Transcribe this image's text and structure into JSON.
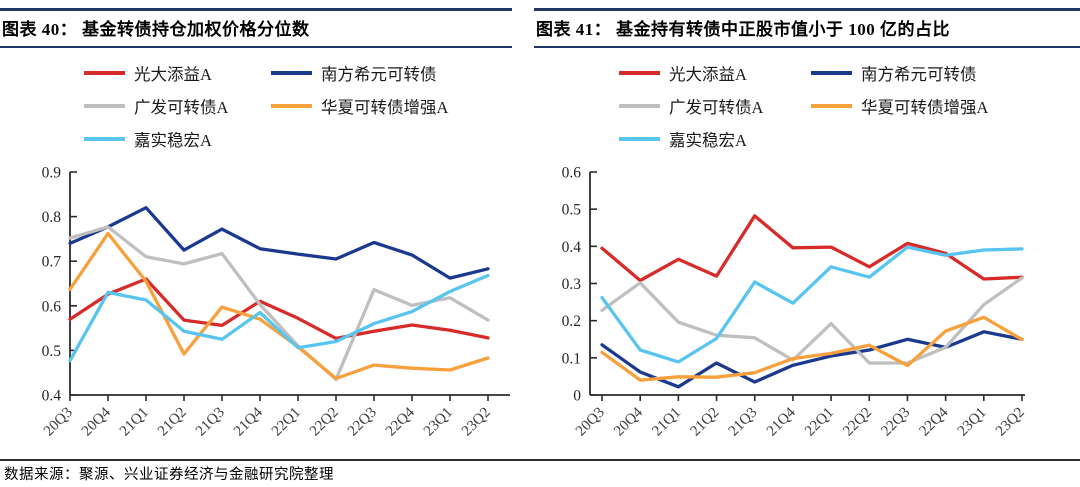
{
  "footer": {
    "source": "数据来源：聚源、兴业证券经济与金融研究院整理"
  },
  "style": {
    "background": "#ffffff",
    "header_line_color": "#1f3864",
    "axis_color": "#2b2b2b",
    "tick_label_color": "#262626",
    "x_label_color": "#3d3d3d",
    "series_colors": {
      "red": "#d62b28",
      "navy": "#1b3a8f",
      "gray": "#bfbfbf",
      "orange": "#f7a03c",
      "cyan": "#58c4f0"
    }
  },
  "chart_data": [
    {
      "type": "line",
      "title": "图表 40： 基金转债持仓加权价格分位数",
      "categories": [
        "20Q3",
        "20Q4",
        "21Q1",
        "21Q2",
        "21Q3",
        "21Q4",
        "22Q1",
        "22Q2",
        "22Q3",
        "22Q4",
        "23Q1",
        "23Q2"
      ],
      "ylim": [
        0.4,
        0.9
      ],
      "ytick_labels": [
        "0.4",
        "0.5",
        "0.6",
        "0.7",
        "0.8",
        "0.9"
      ],
      "grid": false,
      "legend_position": "top-left",
      "series": [
        {
          "name": "光大添益A",
          "color": "#d62b28",
          "values": [
            0.57,
            0.626,
            0.66,
            0.568,
            0.556,
            0.61,
            0.572,
            0.527,
            0.543,
            0.557,
            0.545,
            0.528
          ]
        },
        {
          "name": "南方希元可转债",
          "color": "#1b3a8f",
          "values": [
            0.74,
            0.777,
            0.82,
            0.725,
            0.772,
            0.728,
            0.716,
            0.705,
            0.742,
            0.714,
            0.662,
            0.683
          ]
        },
        {
          "name": "广发可转债A",
          "color": "#bfbfbf",
          "values": [
            0.752,
            0.777,
            0.71,
            0.694,
            0.717,
            0.603,
            0.51,
            0.435,
            0.636,
            0.601,
            0.618,
            0.568
          ]
        },
        {
          "name": "华夏可转债增强A",
          "color": "#f7a03c",
          "values": [
            0.637,
            0.762,
            0.655,
            0.492,
            0.597,
            0.57,
            0.508,
            0.437,
            0.467,
            0.46,
            0.456,
            0.483
          ]
        },
        {
          "name": "嘉实稳宏A",
          "color": "#58c4f0",
          "values": [
            0.477,
            0.63,
            0.613,
            0.543,
            0.525,
            0.585,
            0.506,
            0.52,
            0.56,
            0.587,
            0.632,
            0.668
          ]
        }
      ]
    },
    {
      "type": "line",
      "title": "图表 41： 基金持有转债中正股市值小于 100 亿的占比",
      "categories": [
        "20Q3",
        "20Q4",
        "21Q1",
        "21Q2",
        "21Q3",
        "21Q4",
        "22Q1",
        "22Q2",
        "22Q3",
        "22Q4",
        "23Q1",
        "23Q2"
      ],
      "ylim": [
        0,
        0.6
      ],
      "ytick_labels": [
        "0",
        "0.1",
        "0.2",
        "0.3",
        "0.4",
        "0.5",
        "0.6"
      ],
      "grid": false,
      "legend_position": "top-left",
      "series": [
        {
          "name": "光大添益A",
          "color": "#d62b28",
          "values": [
            0.395,
            0.308,
            0.365,
            0.32,
            0.482,
            0.396,
            0.398,
            0.345,
            0.408,
            0.381,
            0.312,
            0.317
          ]
        },
        {
          "name": "南方希元可转债",
          "color": "#1b3a8f",
          "values": [
            0.135,
            0.062,
            0.022,
            0.086,
            0.035,
            0.08,
            0.105,
            0.121,
            0.15,
            0.128,
            0.17,
            0.15
          ]
        },
        {
          "name": "广发可转债A",
          "color": "#bfbfbf",
          "values": [
            0.228,
            0.302,
            0.196,
            0.161,
            0.154,
            0.094,
            0.192,
            0.086,
            0.086,
            0.128,
            0.243,
            0.315
          ]
        },
        {
          "name": "华夏可转债增强A",
          "color": "#f7a03c",
          "values": [
            0.115,
            0.04,
            0.049,
            0.048,
            0.06,
            0.098,
            0.112,
            0.134,
            0.079,
            0.172,
            0.209,
            0.149
          ]
        },
        {
          "name": "嘉实稳宏A",
          "color": "#58c4f0",
          "values": [
            0.262,
            0.121,
            0.089,
            0.152,
            0.304,
            0.247,
            0.345,
            0.317,
            0.398,
            0.376,
            0.39,
            0.393
          ]
        }
      ]
    }
  ]
}
